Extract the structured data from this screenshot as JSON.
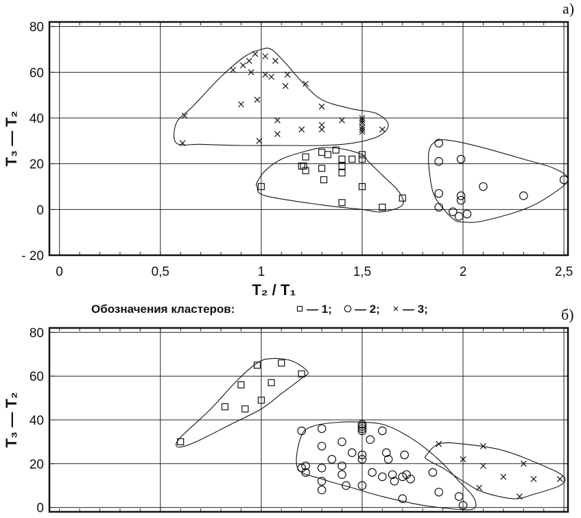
{
  "chart_data": [
    {
      "type": "scatter",
      "panel_label": "а)",
      "xlabel": "T₂ / T₁",
      "ylabel": "T₃ — T₂",
      "xlim": [
        -0.05,
        2.52
      ],
      "ylim": [
        -20,
        82
      ],
      "x_ticks": [
        0,
        0.5,
        1,
        1.5,
        2,
        2.5
      ],
      "x_tick_labels": [
        "0",
        "0,5",
        "1",
        "1,5",
        "2",
        "2,5"
      ],
      "y_ticks": [
        -20,
        0,
        20,
        40,
        60,
        80
      ],
      "y_tick_labels": [
        "- 20",
        "0",
        "20",
        "40",
        "60",
        "80"
      ],
      "grid": true,
      "series": [
        {
          "marker": "square",
          "points": [
            [
              1.0,
              10
            ],
            [
              1.2,
              19
            ],
            [
              1.21,
              19
            ],
            [
              1.22,
              17
            ],
            [
              1.22,
              23
            ],
            [
              1.3,
              18
            ],
            [
              1.3,
              25
            ],
            [
              1.31,
              13
            ],
            [
              1.33,
              24
            ],
            [
              1.37,
              26
            ],
            [
              1.4,
              22
            ],
            [
              1.4,
              19
            ],
            [
              1.4,
              16
            ],
            [
              1.4,
              3
            ],
            [
              1.45,
              22
            ],
            [
              1.5,
              22
            ],
            [
              1.5,
              24
            ],
            [
              1.5,
              10
            ],
            [
              1.6,
              1
            ],
            [
              1.7,
              5
            ]
          ],
          "hull": [
            [
              0.98,
              10
            ],
            [
              1.02,
              6
            ],
            [
              1.3,
              2
            ],
            [
              1.5,
              0
            ],
            [
              1.6,
              -1
            ],
            [
              1.7,
              2
            ],
            [
              1.68,
              8
            ],
            [
              1.6,
              15
            ],
            [
              1.53,
              21
            ],
            [
              1.5,
              24
            ],
            [
              1.4,
              26.5
            ],
            [
              1.3,
              27
            ],
            [
              1.2,
              25
            ],
            [
              1.1,
              22
            ],
            [
              1.02,
              17
            ],
            [
              0.98,
              12
            ]
          ]
        },
        {
          "marker": "circle",
          "points": [
            [
              1.88,
              29
            ],
            [
              1.88,
              21
            ],
            [
              1.88,
              7
            ],
            [
              1.88,
              1
            ],
            [
              1.95,
              -1
            ],
            [
              1.98,
              -3
            ],
            [
              1.99,
              22
            ],
            [
              1.99,
              6
            ],
            [
              1.99,
              4
            ],
            [
              2.02,
              -2
            ],
            [
              2.1,
              10
            ],
            [
              2.3,
              6
            ],
            [
              2.5,
              13
            ]
          ],
          "hull": [
            [
              1.83,
              25
            ],
            [
              1.84,
              12
            ],
            [
              1.87,
              4
            ],
            [
              1.95,
              -4
            ],
            [
              2.0,
              -5.5
            ],
            [
              2.1,
              -5
            ],
            [
              2.3,
              0
            ],
            [
              2.43,
              6
            ],
            [
              2.52,
              13
            ],
            [
              2.45,
              18
            ],
            [
              2.3,
              22
            ],
            [
              2.1,
              27
            ],
            [
              1.95,
              30
            ],
            [
              1.87,
              30
            ]
          ]
        },
        {
          "marker": "cross",
          "points": [
            [
              0.61,
              29
            ],
            [
              0.62,
              41
            ],
            [
              0.86,
              61
            ],
            [
              0.9,
              46
            ],
            [
              0.91,
              63
            ],
            [
              0.94,
              65
            ],
            [
              0.95,
              60
            ],
            [
              0.97,
              68
            ],
            [
              0.98,
              48
            ],
            [
              0.99,
              30
            ],
            [
              1.02,
              67
            ],
            [
              1.02,
              59
            ],
            [
              1.05,
              58
            ],
            [
              1.07,
              65
            ],
            [
              1.08,
              33
            ],
            [
              1.08,
              39
            ],
            [
              1.12,
              54
            ],
            [
              1.13,
              59
            ],
            [
              1.2,
              35
            ],
            [
              1.22,
              55
            ],
            [
              1.3,
              45
            ],
            [
              1.3,
              37
            ],
            [
              1.3,
              35
            ],
            [
              1.4,
              39
            ],
            [
              1.5,
              34
            ],
            [
              1.5,
              35
            ],
            [
              1.5,
              36
            ],
            [
              1.5,
              38
            ],
            [
              1.5,
              39
            ],
            [
              1.5,
              40
            ],
            [
              1.6,
              35
            ]
          ],
          "hull": [
            [
              0.58,
              29
            ],
            [
              0.58,
              38
            ],
            [
              0.66,
              45
            ],
            [
              0.8,
              58
            ],
            [
              0.92,
              67
            ],
            [
              1.0,
              70
            ],
            [
              1.05,
              70
            ],
            [
              1.12,
              64
            ],
            [
              1.2,
              56
            ],
            [
              1.3,
              48
            ],
            [
              1.45,
              44
            ],
            [
              1.57,
              42
            ],
            [
              1.63,
              37
            ],
            [
              1.58,
              32
            ],
            [
              1.45,
              29
            ],
            [
              1.3,
              28
            ],
            [
              1.1,
              28
            ],
            [
              0.9,
              28
            ],
            [
              0.7,
              28.5
            ]
          ]
        }
      ]
    },
    {
      "type": "scatter",
      "panel_label": "б)",
      "xlabel": "",
      "ylabel": "T₃ — T₂",
      "xlim": [
        -0.05,
        2.52
      ],
      "ylim": [
        -2,
        82
      ],
      "y_ticks": [
        0,
        20,
        40,
        60,
        80
      ],
      "y_tick_labels": [
        "0",
        "20",
        "40",
        "60",
        "80"
      ],
      "x_ticks": [
        0.5,
        1,
        1.5,
        2,
        2.5
      ],
      "grid": true,
      "series": [
        {
          "marker": "square",
          "points": [
            [
              0.6,
              30
            ],
            [
              0.82,
              46
            ],
            [
              0.9,
              56
            ],
            [
              0.92,
              45
            ],
            [
              0.98,
              65
            ],
            [
              1.0,
              49
            ],
            [
              1.05,
              57
            ],
            [
              1.1,
              66
            ],
            [
              1.2,
              61
            ]
          ],
          "hull": [
            [
              0.58,
              28
            ],
            [
              0.6,
              32
            ],
            [
              0.75,
              45
            ],
            [
              0.88,
              58
            ],
            [
              0.98,
              66
            ],
            [
              1.05,
              68
            ],
            [
              1.15,
              67
            ],
            [
              1.23,
              62
            ],
            [
              1.2,
              59
            ],
            [
              1.1,
              52
            ],
            [
              1.0,
              45
            ],
            [
              0.85,
              38
            ],
            [
              0.7,
              31
            ],
            [
              0.62,
              28
            ]
          ]
        },
        {
          "marker": "circle",
          "points": [
            [
              1.2,
              35
            ],
            [
              1.2,
              18
            ],
            [
              1.22,
              19
            ],
            [
              1.22,
              16
            ],
            [
              1.3,
              36
            ],
            [
              1.3,
              28
            ],
            [
              1.3,
              18
            ],
            [
              1.3,
              12
            ],
            [
              1.3,
              8
            ],
            [
              1.35,
              22
            ],
            [
              1.4,
              30
            ],
            [
              1.4,
              19
            ],
            [
              1.4,
              15
            ],
            [
              1.42,
              10
            ],
            [
              1.45,
              25
            ],
            [
              1.5,
              38
            ],
            [
              1.5,
              36
            ],
            [
              1.5,
              35
            ],
            [
              1.5,
              24
            ],
            [
              1.5,
              22
            ],
            [
              1.5,
              10
            ],
            [
              1.5,
              37
            ],
            [
              1.54,
              31
            ],
            [
              1.55,
              16
            ],
            [
              1.6,
              14
            ],
            [
              1.6,
              35
            ],
            [
              1.62,
              25
            ],
            [
              1.63,
              22
            ],
            [
              1.65,
              15
            ],
            [
              1.66,
              12
            ],
            [
              1.7,
              14
            ],
            [
              1.7,
              4
            ],
            [
              1.71,
              24
            ],
            [
              1.72,
              15
            ],
            [
              1.74,
              13
            ],
            [
              1.85,
              16
            ],
            [
              1.88,
              7
            ],
            [
              1.98,
              5
            ],
            [
              2.0,
              1
            ]
          ],
          "hull": [
            [
              1.18,
              18
            ],
            [
              1.2,
              33
            ],
            [
              1.27,
              37.5
            ],
            [
              1.4,
              39
            ],
            [
              1.5,
              39
            ],
            [
              1.6,
              38
            ],
            [
              1.7,
              34
            ],
            [
              1.8,
              28
            ],
            [
              1.9,
              20
            ],
            [
              1.98,
              12
            ],
            [
              2.05,
              5
            ],
            [
              2.06,
              0
            ],
            [
              2.0,
              -1
            ],
            [
              1.8,
              1
            ],
            [
              1.6,
              5
            ],
            [
              1.45,
              9
            ],
            [
              1.3,
              13
            ]
          ]
        },
        {
          "marker": "cross",
          "points": [
            [
              1.88,
              29
            ],
            [
              2.0,
              22
            ],
            [
              2.08,
              9
            ],
            [
              2.1,
              28
            ],
            [
              2.1,
              19
            ],
            [
              2.2,
              14
            ],
            [
              2.28,
              5
            ],
            [
              2.3,
              20
            ],
            [
              2.35,
              13
            ],
            [
              2.48,
              13
            ]
          ],
          "hull": [
            [
              1.82,
              24
            ],
            [
              1.88,
              29
            ],
            [
              2.0,
              29
            ],
            [
              2.2,
              26
            ],
            [
              2.4,
              19
            ],
            [
              2.5,
              14
            ],
            [
              2.48,
              10
            ],
            [
              2.35,
              6
            ],
            [
              2.25,
              4
            ],
            [
              2.1,
              7
            ],
            [
              2.0,
              12
            ],
            [
              1.9,
              18
            ],
            [
              1.82,
              22
            ]
          ]
        }
      ]
    }
  ],
  "legend": {
    "title": "Обозначения кластеров:",
    "items": [
      {
        "marker": "square",
        "label": "— 1;"
      },
      {
        "marker": "circle",
        "label": "— 2;"
      },
      {
        "marker": "cross",
        "label": "— 3;"
      }
    ]
  }
}
